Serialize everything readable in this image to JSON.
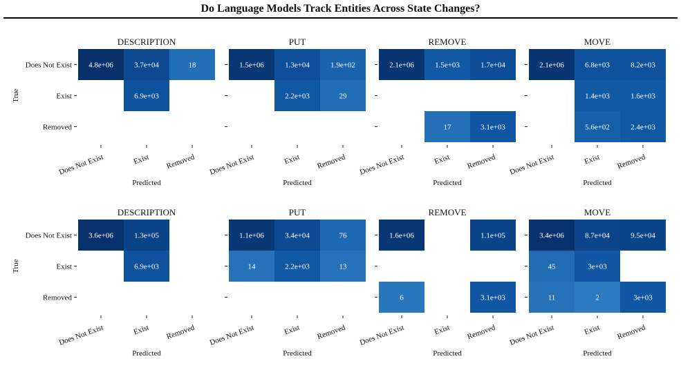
{
  "header": {
    "title": "Do Language Models Track Entities Across State Changes?"
  },
  "caption": "",
  "chart_data": [
    {
      "type": "heatmap",
      "row": "top",
      "title": "DESCRIPTION",
      "xlabel": "Predicted",
      "ylabel": "True",
      "rows": [
        "Does Not Exist",
        "Exist",
        "Removed"
      ],
      "cols": [
        "Does Not Exist",
        "Exist",
        "Removed"
      ],
      "values": [
        [
          4800000,
          37000,
          18
        ],
        [
          null,
          6900,
          null
        ],
        [
          null,
          null,
          null
        ]
      ],
      "labels": [
        [
          "4.8e+06",
          "3.7e+04",
          "18"
        ],
        [
          "",
          "6.9e+03",
          ""
        ],
        [
          "",
          "",
          ""
        ]
      ]
    },
    {
      "type": "heatmap",
      "row": "top",
      "title": "PUT",
      "xlabel": "Predicted",
      "rows": [
        "Does Not Exist",
        "Exist",
        "Removed"
      ],
      "cols": [
        "Does Not Exist",
        "Exist",
        "Removed"
      ],
      "values": [
        [
          1500000,
          13000,
          190
        ],
        [
          null,
          2200,
          29
        ],
        [
          null,
          null,
          null
        ]
      ],
      "labels": [
        [
          "1.5e+06",
          "1.3e+04",
          "1.9e+02"
        ],
        [
          "",
          "2.2e+03",
          "29"
        ],
        [
          "",
          "",
          ""
        ]
      ]
    },
    {
      "type": "heatmap",
      "row": "top",
      "title": "REMOVE",
      "xlabel": "Predicted",
      "rows": [
        "Does Not Exist",
        "Exist",
        "Removed"
      ],
      "cols": [
        "Does Not Exist",
        "Exist",
        "Removed"
      ],
      "values": [
        [
          2100000,
          1500,
          17000
        ],
        [
          null,
          null,
          null
        ],
        [
          null,
          17,
          3100
        ]
      ],
      "labels": [
        [
          "2.1e+06",
          "1.5e+03",
          "1.7e+04"
        ],
        [
          "",
          "",
          ""
        ],
        [
          "",
          "17",
          "3.1e+03"
        ]
      ]
    },
    {
      "type": "heatmap",
      "row": "top",
      "title": "MOVE",
      "xlabel": "Predicted",
      "rows": [
        "Does Not Exist",
        "Exist",
        "Removed"
      ],
      "cols": [
        "Does Not Exist",
        "Exist",
        "Removed"
      ],
      "values": [
        [
          2100000,
          6800,
          8200
        ],
        [
          null,
          1400,
          1600
        ],
        [
          null,
          560,
          2400
        ]
      ],
      "labels": [
        [
          "2.1e+06",
          "6.8e+03",
          "8.2e+03"
        ],
        [
          "",
          "1.4e+03",
          "1.6e+03"
        ],
        [
          "",
          "5.6e+02",
          "2.4e+03"
        ]
      ]
    },
    {
      "type": "heatmap",
      "row": "bottom",
      "title": "DESCRIPTION",
      "xlabel": "Predicted",
      "ylabel": "True",
      "rows": [
        "Does Not Exist",
        "Exist",
        "Removed"
      ],
      "cols": [
        "Does Not Exist",
        "Exist",
        "Removed"
      ],
      "values": [
        [
          3600000,
          130000,
          null
        ],
        [
          null,
          6900,
          null
        ],
        [
          null,
          null,
          null
        ]
      ],
      "labels": [
        [
          "3.6e+06",
          "1.3e+05",
          ""
        ],
        [
          "",
          "6.9e+03",
          ""
        ],
        [
          "",
          "",
          ""
        ]
      ]
    },
    {
      "type": "heatmap",
      "row": "bottom",
      "title": "PUT",
      "xlabel": "Predicted",
      "rows": [
        "Does Not Exist",
        "Exist",
        "Removed"
      ],
      "cols": [
        "Does Not Exist",
        "Exist",
        "Removed"
      ],
      "values": [
        [
          1100000,
          34000,
          76
        ],
        [
          14,
          2200,
          13
        ],
        [
          null,
          null,
          null
        ]
      ],
      "labels": [
        [
          "1.1e+06",
          "3.4e+04",
          "76"
        ],
        [
          "14",
          "2.2e+03",
          "13"
        ],
        [
          "",
          "",
          ""
        ]
      ]
    },
    {
      "type": "heatmap",
      "row": "bottom",
      "title": "REMOVE",
      "xlabel": "Predicted",
      "rows": [
        "Does Not Exist",
        "Exist",
        "Removed"
      ],
      "cols": [
        "Does Not Exist",
        "Exist",
        "Removed"
      ],
      "values": [
        [
          1600000,
          null,
          110000
        ],
        [
          null,
          null,
          null
        ],
        [
          6,
          null,
          3100
        ]
      ],
      "labels": [
        [
          "1.6e+06",
          "",
          "1.1e+05"
        ],
        [
          "",
          "",
          ""
        ],
        [
          "6",
          "",
          "3.1e+03"
        ]
      ]
    },
    {
      "type": "heatmap",
      "row": "bottom",
      "title": "MOVE",
      "xlabel": "Predicted",
      "rows": [
        "Does Not Exist",
        "Exist",
        "Removed"
      ],
      "cols": [
        "Does Not Exist",
        "Exist",
        "Removed"
      ],
      "values": [
        [
          3400000,
          87000,
          95000
        ],
        [
          45,
          3000,
          null
        ],
        [
          11,
          2,
          3000
        ]
      ],
      "labels": [
        [
          "3.4e+06",
          "8.7e+04",
          "9.5e+04"
        ],
        [
          "45",
          "3e+03",
          ""
        ],
        [
          "11",
          "2",
          "3e+03"
        ]
      ]
    }
  ],
  "colors": {
    "light": "#2f7fc3",
    "mid": "#0e54a0",
    "dark": "#08306b",
    "cell_text": "#ffffff"
  }
}
